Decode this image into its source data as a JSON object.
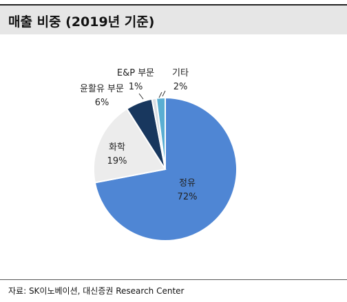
{
  "header": {
    "title": "매출 비중 (2019년 기준)"
  },
  "chart_data": {
    "type": "pie",
    "slices": [
      {
        "label": "정유",
        "value": 72,
        "display": "72%",
        "color": "#4f86d4"
      },
      {
        "label": "화학",
        "value": 19,
        "display": "19%",
        "color": "#ececec"
      },
      {
        "label": "윤활유 부문",
        "value": 6,
        "display": "6%",
        "color": "#18375e"
      },
      {
        "label": "E&P 부문",
        "value": 1,
        "display": "1%",
        "color": "#d9dde3"
      },
      {
        "label": "기타",
        "value": 2,
        "display": "2%",
        "color": "#5aaed2"
      }
    ]
  },
  "footer": {
    "source": "자료: SK이노베이션, 대신증권 Research Center"
  }
}
